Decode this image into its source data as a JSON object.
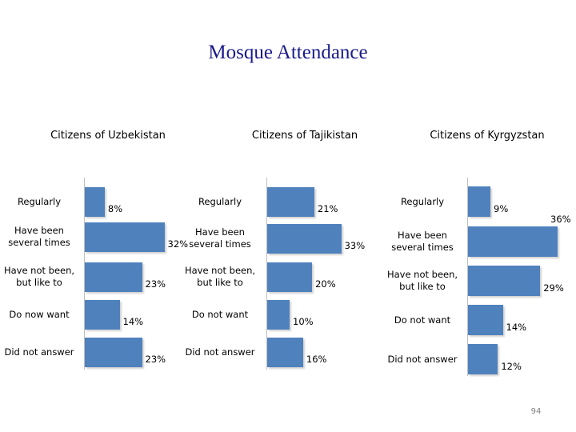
{
  "title": "Mosque Attendance",
  "page_number": "94",
  "colors": {
    "bar": "#4f81bd",
    "title": "#1a1a8c"
  },
  "chart_data": [
    {
      "type": "bar",
      "orientation": "horizontal",
      "title": "Citizens of Uzbekistan",
      "categories": [
        "Regularly",
        "Have been several times",
        "Have not been, but like to",
        "Do now want",
        "Did not answer"
      ],
      "values": [
        8,
        32,
        23,
        14,
        23
      ],
      "value_labels": [
        "8%",
        "32%",
        "23%",
        "14%",
        "23%"
      ],
      "xlim": [
        0,
        36
      ],
      "grid": false
    },
    {
      "type": "bar",
      "orientation": "horizontal",
      "title": "Citizens of Tajikistan",
      "categories": [
        "Regularly",
        "Have been several times",
        "Have not been, but like to",
        "Do not want",
        "Did not answer"
      ],
      "values": [
        21,
        33,
        20,
        10,
        16
      ],
      "value_labels": [
        "21%",
        "33%",
        "20%",
        "10%",
        "16%"
      ],
      "xlim": [
        0,
        36
      ],
      "grid": false
    },
    {
      "type": "bar",
      "orientation": "horizontal",
      "title": "Citizens of Kyrgyzstan",
      "categories": [
        "Regularly",
        "Have been several times",
        "Have not been, but like to",
        "Do not want",
        "Did not answer"
      ],
      "values": [
        9,
        36,
        29,
        14,
        12
      ],
      "value_labels": [
        "9%",
        "36%",
        "29%",
        "14%",
        "12%"
      ],
      "xlim": [
        0,
        36
      ],
      "grid": false
    }
  ]
}
